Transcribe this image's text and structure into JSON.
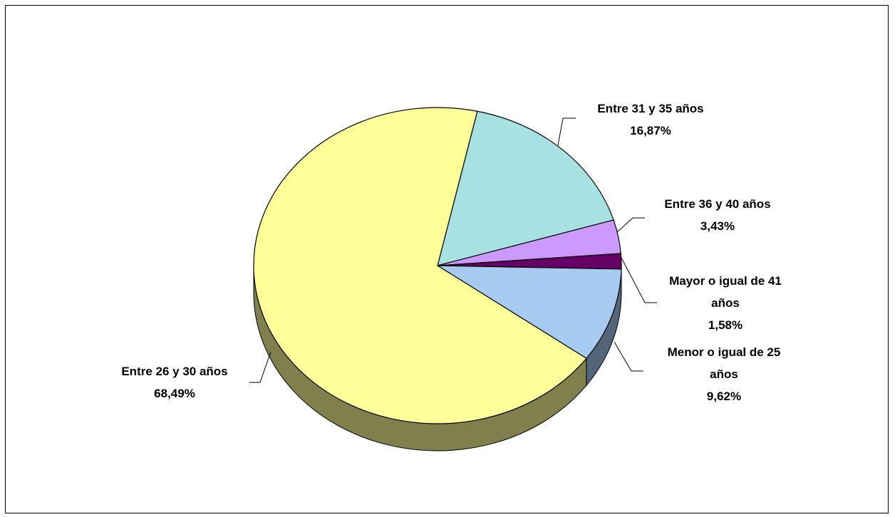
{
  "chart_data": {
    "type": "pie",
    "title": "",
    "three_d": true,
    "legend": "none",
    "slices": [
      {
        "label": "Entre 31 y 35 años",
        "value": 16.87,
        "display": "16,87%",
        "color": "#A8E1E1"
      },
      {
        "label": "Entre 36 y 40 años",
        "value": 3.43,
        "display": "3,43%",
        "color": "#CC99FF"
      },
      {
        "label": "Mayor o igual de 41 años",
        "value": 1.58,
        "display": "1,58%",
        "color": "#660066"
      },
      {
        "label": "Menor o igual de 25 años",
        "value": 9.62,
        "display": "9,62%",
        "color": "#A6CAF0"
      },
      {
        "label": "Entre 26 y 30 años",
        "value": 68.49,
        "display": "68,49%",
        "color": "#FFFF99"
      }
    ]
  }
}
